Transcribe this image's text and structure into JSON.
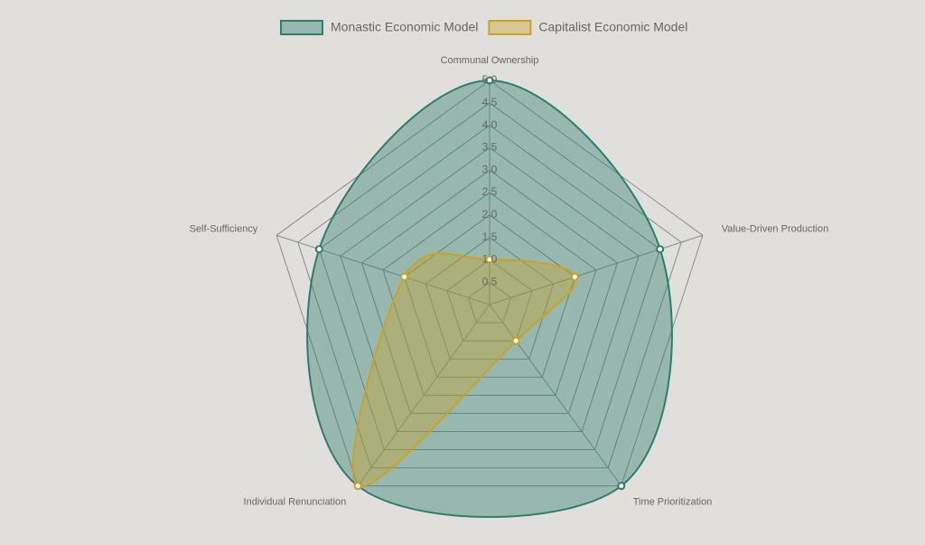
{
  "chart_data": {
    "type": "radar",
    "categories": [
      "Communal Ownership",
      "Value-Driven Production",
      "Time Prioritization",
      "Individual Renunciation",
      "Self-Sufficiency"
    ],
    "series": [
      {
        "name": "Monastic Economic Model",
        "color": "#2e7d6e",
        "values": [
          5,
          4,
          5,
          5,
          4
        ]
      },
      {
        "name": "Capitalist Economic Model",
        "color": "#c9a227",
        "values": [
          1,
          2,
          1,
          5,
          2
        ]
      }
    ],
    "ylim": [
      0,
      5
    ],
    "yticks": [
      0.5,
      {
        "value": 1,
        "label": "1.0"
      },
      1.5,
      {
        "value": 2,
        "label": "2.0"
      },
      2.5,
      {
        "value": 3,
        "label": "3.0"
      },
      3.5,
      {
        "value": 4,
        "label": "4.0"
      },
      4.5,
      {
        "value": 5,
        "label": "5.0"
      }
    ],
    "legend": "top"
  }
}
